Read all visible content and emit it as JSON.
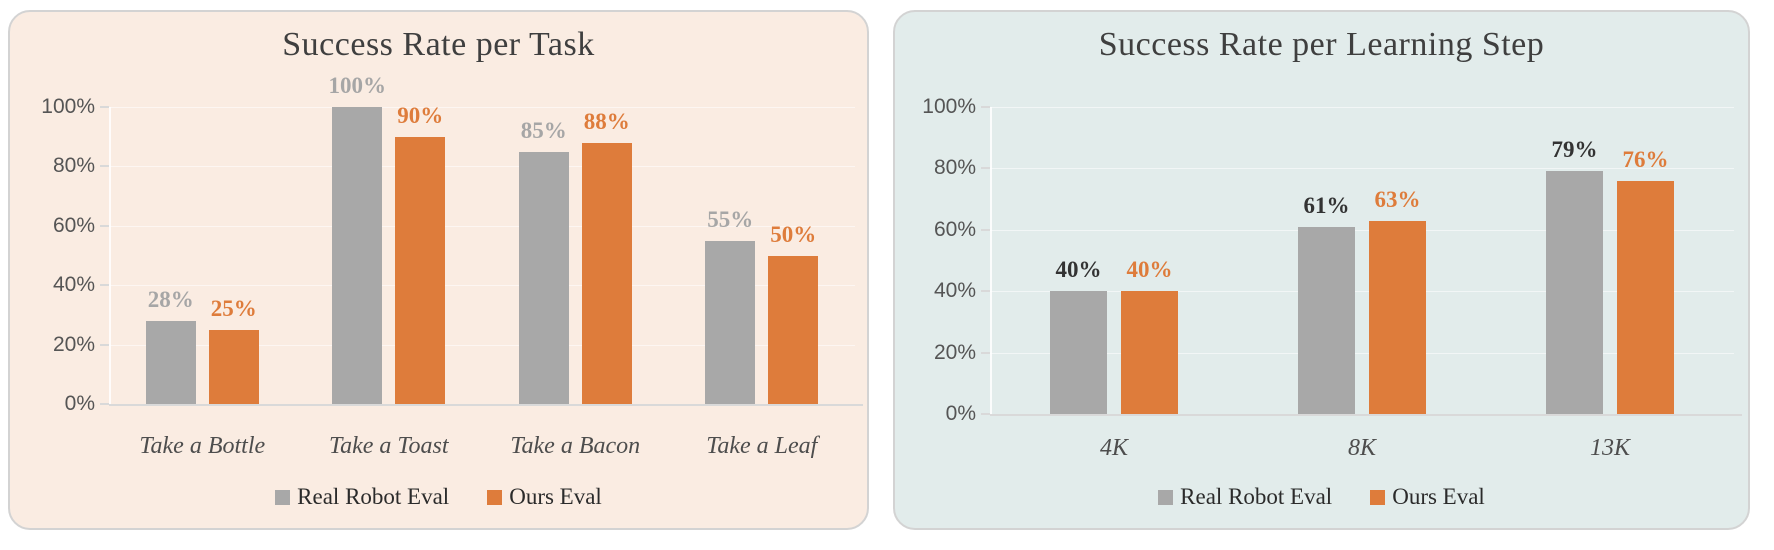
{
  "chart_data": [
    {
      "type": "bar",
      "title": "Success Rate per Task",
      "panel_bg": "#faece2",
      "categories": [
        "Take a Bottle",
        "Take a Toast",
        "Take a Bacon",
        "Take a Leaf"
      ],
      "series": [
        {
          "name": "Real Robot Eval",
          "color": "#a8a8a8",
          "label_color": "#a6a6a6",
          "values": [
            28,
            100,
            85,
            55
          ]
        },
        {
          "name": "Ours Eval",
          "color": "#de7c3b",
          "label_color": "#de7c3b",
          "values": [
            25,
            90,
            88,
            50
          ]
        }
      ],
      "y_ticks": [
        "0%",
        "20%",
        "40%",
        "60%",
        "80%",
        "100%"
      ],
      "ylim": [
        0,
        100
      ],
      "legend_position": "bottom",
      "grid": "faint-horizontal"
    },
    {
      "type": "bar",
      "title": "Success Rate per Learning Step",
      "panel_bg": "#e2eceb",
      "categories": [
        "4K",
        "8K",
        "13K"
      ],
      "series": [
        {
          "name": "Real Robot Eval",
          "color": "#a8a8a8",
          "label_color": "#333333",
          "values": [
            40,
            61,
            79
          ]
        },
        {
          "name": "Ours Eval",
          "color": "#de7c3b",
          "label_color": "#de7c3b",
          "values": [
            40,
            63,
            76
          ]
        }
      ],
      "y_ticks": [
        "0%",
        "20%",
        "40%",
        "60%",
        "80%",
        "100%"
      ],
      "ylim": [
        0,
        100
      ],
      "legend_position": "bottom",
      "grid": "faint-horizontal"
    }
  ]
}
